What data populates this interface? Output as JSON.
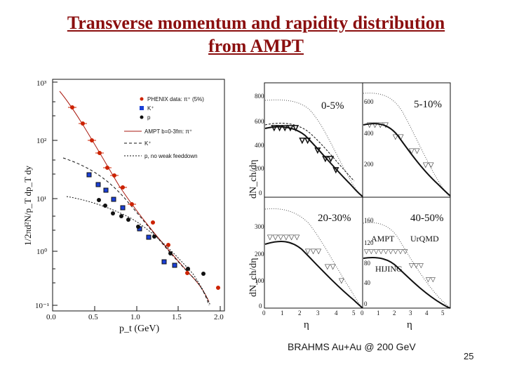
{
  "slide": {
    "title_line1": "Transverse momentum and rapidity distribution",
    "title_line2": "from AMPT",
    "caption": "BRAHMS Au+Au @ 200 GeV",
    "page_number": "25"
  },
  "colors": {
    "title": "#8b0f0f",
    "pion": "#cc2200",
    "kaon": "#1a3fd6",
    "proton": "#111111"
  },
  "left_plot": {
    "ylabel": "1/2πd²N/p_T dp_T dy",
    "xlabel": "p_t (GeV)",
    "y_ticks": [
      "10³",
      "10²",
      "10¹",
      "10⁰",
      "10⁻¹"
    ],
    "x_ticks": [
      "0.0",
      "0.5",
      "1.0",
      "1.5",
      "2.0"
    ],
    "legend": [
      "PHENIX data: π⁺ (5%)",
      "K⁺",
      "p",
      "AMPT b=0-3fm: π⁺",
      "K⁺",
      "p, no weak feeddown"
    ]
  },
  "right_plot": {
    "ylabel": "dN_ch/dη",
    "xlabel": "η",
    "panels": [
      {
        "label": "0-5%",
        "y_ticks": [
          "800",
          "600",
          "400",
          "200",
          "0"
        ]
      },
      {
        "label": "5-10%",
        "y_ticks": [
          "600",
          "400",
          "200"
        ]
      },
      {
        "label": "20-30%",
        "y_ticks": [
          "300",
          "200",
          "100",
          "0"
        ]
      },
      {
        "label": "40-50%",
        "y_ticks": [
          "160",
          "120",
          "80",
          "40",
          "0"
        ]
      }
    ],
    "model_labels": [
      "AMPT",
      "UrQMD",
      "HIJING"
    ],
    "x_ticks": [
      "0",
      "1",
      "2",
      "3",
      "4",
      "5"
    ]
  }
}
